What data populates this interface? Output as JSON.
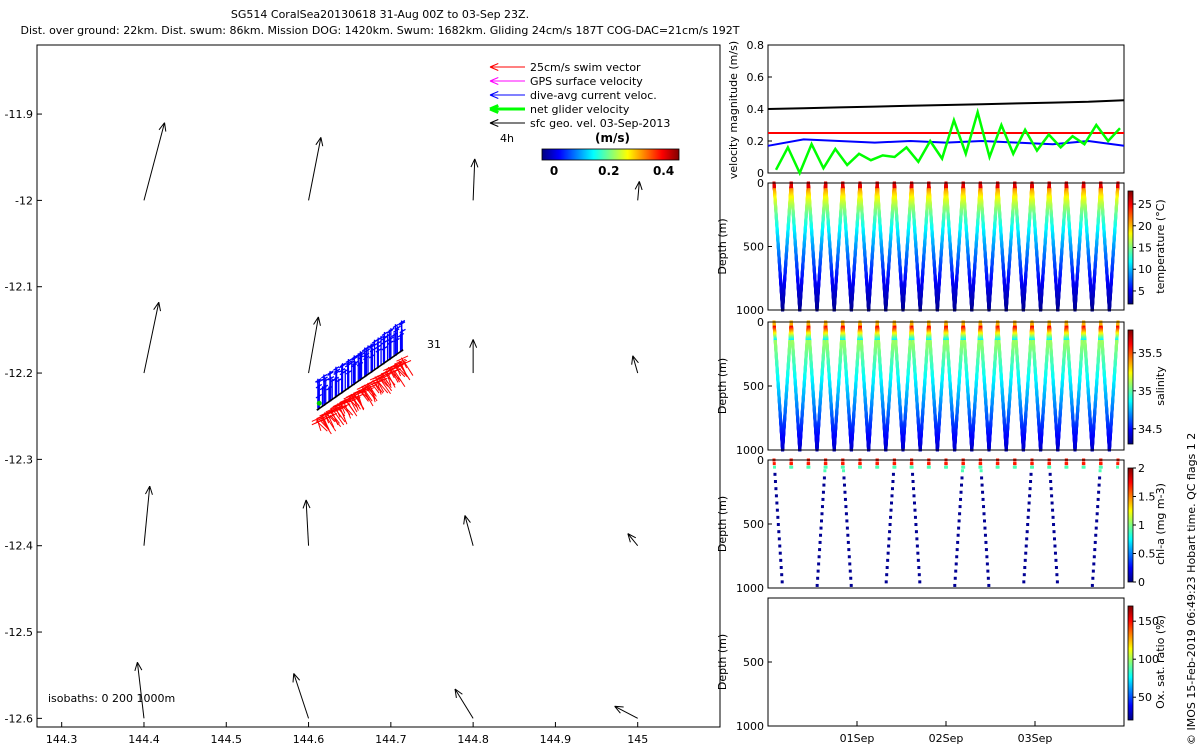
{
  "title": {
    "line1": "SG514 CoralSea20130618 31-Aug 00Z to 03-Sep 23Z.",
    "line2": "Dist. over ground: 22km. Dist. swum: 86km. Mission DOG: 1420km. Swum: 1682km. Gliding 24cm/s 187T COG-DAC=21cm/s 192T"
  },
  "credit": "© IMOS 15-Feb-2019 06:49:23 Hobart time. QC flags 1  2",
  "chart_data": [
    {
      "id": "map",
      "type": "scatter",
      "xlim": [
        144.27,
        145.1
      ],
      "ylim": [
        -12.61,
        -11.82
      ],
      "x_ticks": [
        "144.3",
        "144.4",
        "144.5",
        "144.6",
        "144.7",
        "144.8",
        "144.9",
        "145"
      ],
      "y_ticks": [
        "-11.9",
        "-12",
        "-12.1",
        "-12.2",
        "-12.3",
        "-12.4",
        "-12.5",
        "-12.6"
      ],
      "legend": [
        {
          "label": "25cm/s swim vector",
          "color": "#ff0000"
        },
        {
          "label": "GPS surface velocity",
          "color": "#ff00ff"
        },
        {
          "label": "dive-avg current veloc.",
          "color": "#0000ff"
        },
        {
          "label": "net glider velocity",
          "color": "#00ff00"
        },
        {
          "label": "sfc geo. vel. 03-Sep-2013",
          "color": "#000000"
        }
      ],
      "legend_placement": "top-right",
      "annotation_4h": "4h",
      "annotation_31": "31",
      "isobaths_label": "isobaths: 0   200  1000m",
      "colorbar": {
        "label": "(m/s)",
        "ticks": [
          "0",
          "0.2",
          "0.4"
        ],
        "range": [
          0,
          0.5
        ]
      },
      "geo_vectors": [
        {
          "x": 144.4,
          "y": -12.0,
          "dx": 0.025,
          "dy": 0.09
        },
        {
          "x": 144.6,
          "y": -12.0,
          "dx": 0.015,
          "dy": 0.073
        },
        {
          "x": 144.8,
          "y": -12.0,
          "dx": 0.002,
          "dy": 0.048
        },
        {
          "x": 145.0,
          "y": -12.0,
          "dx": 0.002,
          "dy": 0.022
        },
        {
          "x": 144.4,
          "y": -12.2,
          "dx": 0.018,
          "dy": 0.082
        },
        {
          "x": 144.6,
          "y": -12.2,
          "dx": 0.012,
          "dy": 0.065
        },
        {
          "x": 144.8,
          "y": -12.2,
          "dx": 0.0,
          "dy": 0.039
        },
        {
          "x": 145.0,
          "y": -12.2,
          "dx": -0.006,
          "dy": 0.02
        },
        {
          "x": 144.4,
          "y": -12.4,
          "dx": 0.007,
          "dy": 0.069
        },
        {
          "x": 144.6,
          "y": -12.4,
          "dx": -0.003,
          "dy": 0.053
        },
        {
          "x": 144.8,
          "y": -12.4,
          "dx": -0.01,
          "dy": 0.035
        },
        {
          "x": 145.0,
          "y": -12.4,
          "dx": -0.012,
          "dy": 0.014
        },
        {
          "x": 144.4,
          "y": -12.6,
          "dx": -0.008,
          "dy": 0.065
        },
        {
          "x": 144.6,
          "y": -12.6,
          "dx": -0.018,
          "dy": 0.052
        },
        {
          "x": 144.8,
          "y": -12.6,
          "dx": -0.022,
          "dy": 0.034
        },
        {
          "x": 145.0,
          "y": -12.6,
          "dx": -0.028,
          "dy": 0.014
        }
      ],
      "track": {
        "start": [
          144.61,
          -12.255
        ],
        "end": [
          144.715,
          -12.185
        ]
      },
      "current_vectors_offset": {
        "dx": 0.0,
        "dy": 0.033
      },
      "swim_vectors_offset": {
        "dx": 0.0,
        "dy": -0.015
      }
    },
    {
      "id": "velocity",
      "type": "line",
      "ylabel": "velocity magnitude (m/s)",
      "ylim": [
        0,
        0.8
      ],
      "y_ticks": [
        "0",
        "0.2",
        "0.4",
        "0.6",
        "0.8"
      ],
      "x_time_range": [
        "31-Aug 00Z",
        "03-Sep 23Z"
      ],
      "series": [
        {
          "color": "#000000",
          "values": [
            0.4,
            0.405,
            0.41,
            0.415,
            0.42,
            0.425,
            0.43,
            0.435,
            0.44,
            0.445,
            0.455
          ]
        },
        {
          "color": "#ff0000",
          "values": [
            0.25,
            0.25,
            0.25,
            0.25,
            0.25,
            0.25,
            0.25,
            0.25,
            0.25,
            0.25,
            0.25
          ]
        },
        {
          "color": "#0000ff",
          "values": [
            0.17,
            0.21,
            0.2,
            0.19,
            0.2,
            0.19,
            0.2,
            0.19,
            0.18,
            0.2,
            0.17
          ]
        }
      ],
      "net_glider_spikes": [
        0.02,
        0.16,
        0.0,
        0.18,
        0.03,
        0.15,
        0.05,
        0.12,
        0.08,
        0.11,
        0.1,
        0.16,
        0.07,
        0.2,
        0.09,
        0.33,
        0.12,
        0.38,
        0.1,
        0.3,
        0.12,
        0.27,
        0.14,
        0.24,
        0.16,
        0.23,
        0.18,
        0.3,
        0.2,
        0.28
      ]
    },
    {
      "id": "temperature",
      "type": "scatter",
      "ylabel": "Depth (m)",
      "colorbar_label": "temperature (°C)",
      "colorbar_ticks": [
        "5",
        "10",
        "15",
        "20",
        "25"
      ],
      "colorbar_range": [
        2,
        28
      ],
      "y_ticks": [
        "0",
        "500",
        "1000"
      ],
      "dive_count": 20
    },
    {
      "id": "salinity",
      "type": "scatter",
      "ylabel": "Depth (m)",
      "colorbar_label": "salinity",
      "colorbar_ticks": [
        "34.5",
        "35",
        "35.5"
      ],
      "colorbar_range": [
        34.3,
        35.8
      ],
      "y_ticks": [
        "0",
        "500",
        "1000"
      ],
      "dive_count": 20
    },
    {
      "id": "chla",
      "type": "scatter",
      "ylabel": "Depth (m)",
      "colorbar_label": "chl-a (mg m-3)",
      "colorbar_ticks": [
        "0",
        "0.5",
        "1",
        "1.5",
        "2"
      ],
      "colorbar_range": [
        0,
        2
      ],
      "y_ticks": [
        "0",
        "500",
        "1000"
      ],
      "dive_count": 20
    },
    {
      "id": "oxygen",
      "type": "scatter",
      "ylabel": "Depth (m)",
      "colorbar_label": "Ox. sat. ratio (%)",
      "colorbar_ticks": [
        "50",
        "100",
        "150"
      ],
      "colorbar_range": [
        20,
        170
      ],
      "y_ticks": [
        "500",
        "1000"
      ],
      "x_ticks": [
        "01Sep",
        "02Sep",
        "03Sep"
      ],
      "dive_count": 0
    }
  ]
}
